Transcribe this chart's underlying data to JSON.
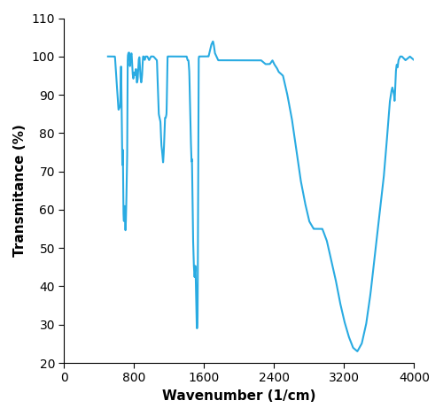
{
  "line_color": "#29ABE2",
  "line_width": 1.5,
  "xlabel": "Wavenumber (1/cm)",
  "ylabel": "Transmitance (%)",
  "xlim": [
    0,
    4000
  ],
  "ylim": [
    20,
    110
  ],
  "xticks": [
    0,
    800,
    1600,
    2400,
    3200,
    4000
  ],
  "yticks": [
    20,
    30,
    40,
    50,
    60,
    70,
    80,
    90,
    100,
    110
  ],
  "background_color": "#ffffff",
  "keypoints": [
    [
      500,
      100
    ],
    [
      580,
      100
    ],
    [
      620,
      86
    ],
    [
      640,
      87
    ],
    [
      650,
      99
    ],
    [
      660,
      78
    ],
    [
      665,
      70
    ],
    [
      670,
      78
    ],
    [
      675,
      61
    ],
    [
      680,
      57
    ],
    [
      685,
      57
    ],
    [
      690,
      62
    ],
    [
      695,
      57
    ],
    [
      700,
      54
    ],
    [
      705,
      57
    ],
    [
      710,
      62
    ],
    [
      715,
      68
    ],
    [
      720,
      73
    ],
    [
      725,
      100
    ],
    [
      735,
      101
    ],
    [
      745,
      101
    ],
    [
      750,
      97
    ],
    [
      760,
      100
    ],
    [
      770,
      101
    ],
    [
      780,
      96
    ],
    [
      790,
      94
    ],
    [
      800,
      96
    ],
    [
      810,
      95
    ],
    [
      820,
      97
    ],
    [
      830,
      93
    ],
    [
      840,
      94
    ],
    [
      850,
      99
    ],
    [
      860,
      100
    ],
    [
      870,
      95
    ],
    [
      880,
      93
    ],
    [
      890,
      95
    ],
    [
      900,
      100
    ],
    [
      910,
      100
    ],
    [
      920,
      99
    ],
    [
      930,
      100
    ],
    [
      950,
      100
    ],
    [
      970,
      99
    ],
    [
      990,
      100
    ],
    [
      1020,
      100
    ],
    [
      1060,
      99
    ],
    [
      1080,
      85
    ],
    [
      1090,
      84
    ],
    [
      1100,
      83
    ],
    [
      1110,
      77
    ],
    [
      1120,
      75
    ],
    [
      1130,
      72
    ],
    [
      1140,
      76
    ],
    [
      1150,
      84
    ],
    [
      1160,
      84
    ],
    [
      1170,
      85
    ],
    [
      1180,
      100
    ],
    [
      1200,
      100
    ],
    [
      1250,
      100
    ],
    [
      1300,
      100
    ],
    [
      1350,
      100
    ],
    [
      1380,
      100
    ],
    [
      1400,
      100
    ],
    [
      1410,
      99
    ],
    [
      1420,
      99
    ],
    [
      1430,
      96
    ],
    [
      1440,
      84
    ],
    [
      1450,
      76
    ],
    [
      1455,
      72
    ],
    [
      1460,
      74
    ],
    [
      1470,
      55
    ],
    [
      1480,
      46
    ],
    [
      1490,
      42
    ],
    [
      1500,
      46
    ],
    [
      1510,
      34
    ],
    [
      1515,
      29
    ],
    [
      1520,
      29
    ],
    [
      1525,
      31
    ],
    [
      1535,
      99
    ],
    [
      1540,
      100
    ],
    [
      1560,
      100
    ],
    [
      1600,
      100
    ],
    [
      1650,
      100
    ],
    [
      1680,
      103
    ],
    [
      1700,
      104
    ],
    [
      1710,
      103
    ],
    [
      1720,
      101
    ],
    [
      1740,
      100
    ],
    [
      1760,
      99
    ],
    [
      1800,
      99
    ],
    [
      1850,
      99
    ],
    [
      1900,
      99
    ],
    [
      1950,
      99
    ],
    [
      2000,
      99
    ],
    [
      2050,
      99
    ],
    [
      2100,
      99
    ],
    [
      2150,
      99
    ],
    [
      2200,
      99
    ],
    [
      2250,
      99
    ],
    [
      2300,
      98
    ],
    [
      2350,
      98
    ],
    [
      2380,
      99
    ],
    [
      2400,
      98
    ],
    [
      2430,
      97
    ],
    [
      2450,
      96
    ],
    [
      2500,
      95
    ],
    [
      2550,
      90
    ],
    [
      2600,
      84
    ],
    [
      2650,
      76
    ],
    [
      2700,
      68
    ],
    [
      2750,
      62
    ],
    [
      2800,
      57
    ],
    [
      2850,
      55
    ],
    [
      2900,
      55
    ],
    [
      2950,
      55
    ],
    [
      3000,
      52
    ],
    [
      3050,
      47
    ],
    [
      3100,
      42
    ],
    [
      3150,
      36
    ],
    [
      3200,
      31
    ],
    [
      3250,
      27
    ],
    [
      3300,
      24
    ],
    [
      3350,
      23
    ],
    [
      3400,
      25
    ],
    [
      3450,
      30
    ],
    [
      3500,
      38
    ],
    [
      3550,
      48
    ],
    [
      3600,
      58
    ],
    [
      3650,
      68
    ],
    [
      3680,
      76
    ],
    [
      3700,
      82
    ],
    [
      3720,
      88
    ],
    [
      3740,
      91
    ],
    [
      3750,
      92
    ],
    [
      3760,
      91
    ],
    [
      3770,
      90
    ],
    [
      3775,
      88
    ],
    [
      3780,
      90
    ],
    [
      3790,
      96
    ],
    [
      3800,
      98
    ],
    [
      3810,
      97
    ],
    [
      3820,
      99
    ],
    [
      3840,
      100
    ],
    [
      3860,
      100
    ],
    [
      3900,
      99
    ],
    [
      3950,
      100
    ],
    [
      4000,
      99
    ]
  ]
}
